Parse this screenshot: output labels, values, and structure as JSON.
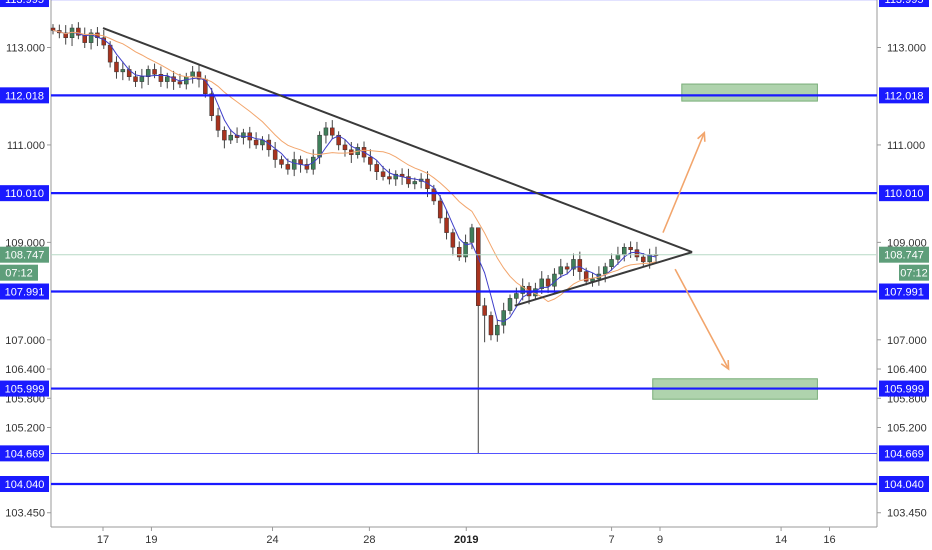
{
  "chart_data": {
    "type": "candlestick",
    "instrument_note": "",
    "y_range": [
      103.2,
      113.99
    ],
    "x_range_days": [
      "Dec 15",
      "Jan 16"
    ],
    "price_ticks": [
      113.0,
      112.0,
      111.0,
      110.0,
      109.0,
      108.0,
      107.0,
      106.4,
      105.8,
      105.2,
      103.45
    ],
    "price_tick_labels": [
      "113.000",
      "111.000",
      "109.000",
      "107.000",
      "106.400",
      "105.800",
      "105.200",
      "103.450"
    ],
    "x_ticks": [
      {
        "day": 17,
        "label": "17",
        "bold": false
      },
      {
        "day": 19,
        "label": "19",
        "bold": false
      },
      {
        "day": 24,
        "label": "24",
        "bold": false
      },
      {
        "day": 28,
        "label": "28",
        "bold": false
      },
      {
        "day": 32,
        "label": "2019",
        "bold": true
      },
      {
        "day": 38,
        "label": "7",
        "bold": false
      },
      {
        "day": 40,
        "label": "9",
        "bold": false
      },
      {
        "day": 45,
        "label": "14",
        "bold": false
      },
      {
        "day": 47,
        "label": "16",
        "bold": false
      }
    ],
    "levels": [
      {
        "value": 113.995,
        "label": "113.995",
        "style": "blue-thick"
      },
      {
        "value": 112.018,
        "label": "112.018",
        "style": "blue-thick"
      },
      {
        "value": 110.01,
        "label": "110.010",
        "style": "blue-thick"
      },
      {
        "value": 107.991,
        "label": "107.991",
        "style": "blue-thick"
      },
      {
        "value": 105.999,
        "label": "105.999",
        "style": "blue-thick"
      },
      {
        "value": 104.669,
        "label": "104.669",
        "style": "blue-thin"
      },
      {
        "value": 104.04,
        "label": "104.040",
        "style": "blue-thick"
      }
    ],
    "current_price": {
      "value": 108.747,
      "label": "108.747",
      "timer": "07:12",
      "color": "#5e9e7a"
    },
    "target_zones": [
      {
        "name": "upper-target",
        "x0": "Jan 9.5",
        "x1": "Jan 15.5",
        "y0": 111.9,
        "y1": 112.25
      },
      {
        "name": "lower-target",
        "x0": "Jan 9.5",
        "x1": "Jan 15.5",
        "y0": 105.78,
        "y1": 106.2
      }
    ],
    "trendlines": [
      {
        "name": "descending-resistance",
        "from": [
          "Dec 17",
          113.4
        ],
        "to": [
          "Jan 9.5",
          108.8
        ]
      },
      {
        "name": "ascending-support",
        "from": [
          "Jan 3",
          107.7
        ],
        "to": [
          "Jan 9.5",
          108.8
        ]
      }
    ],
    "projection_arrows": [
      {
        "name": "bullish-projection",
        "from": [
          "Jan 9",
          109.2
        ],
        "to": [
          "Jan 10.5",
          111.25
        ]
      },
      {
        "name": "bearish-projection",
        "from": [
          "Jan 9.5",
          108.45
        ],
        "to": [
          "Jan 11.5",
          106.4
        ]
      }
    ],
    "closes": [
      113.35,
      113.3,
      113.2,
      113.4,
      113.25,
      113.1,
      113.3,
      113.2,
      113.05,
      112.7,
      112.5,
      112.55,
      112.4,
      112.3,
      112.4,
      112.55,
      112.45,
      112.3,
      112.4,
      112.3,
      112.25,
      112.4,
      112.5,
      112.35,
      112.05,
      111.6,
      111.3,
      111.1,
      111.2,
      111.15,
      111.25,
      111.1,
      111.0,
      111.1,
      110.9,
      110.7,
      110.6,
      110.5,
      110.7,
      110.6,
      110.5,
      110.75,
      111.2,
      111.35,
      111.2,
      111.0,
      110.9,
      110.8,
      110.95,
      110.75,
      110.6,
      110.45,
      110.35,
      110.3,
      110.4,
      110.35,
      110.2,
      110.25,
      110.3,
      110.1,
      109.85,
      109.5,
      109.2,
      108.9,
      108.7,
      109.0,
      109.3,
      107.7,
      107.5,
      107.1,
      107.3,
      107.6,
      107.85,
      107.95,
      108.1,
      107.9,
      108.05,
      108.25,
      108.1,
      108.35,
      108.5,
      108.45,
      108.65,
      108.4,
      108.2,
      108.25,
      108.35,
      108.5,
      108.65,
      108.75,
      108.9,
      108.85,
      108.7,
      108.6,
      108.75,
      108.747
    ],
    "series": [
      {
        "name": "",
        "color": "#3f3fc9"
      },
      {
        "name": "",
        "color": "#f2a56c"
      }
    ]
  }
}
